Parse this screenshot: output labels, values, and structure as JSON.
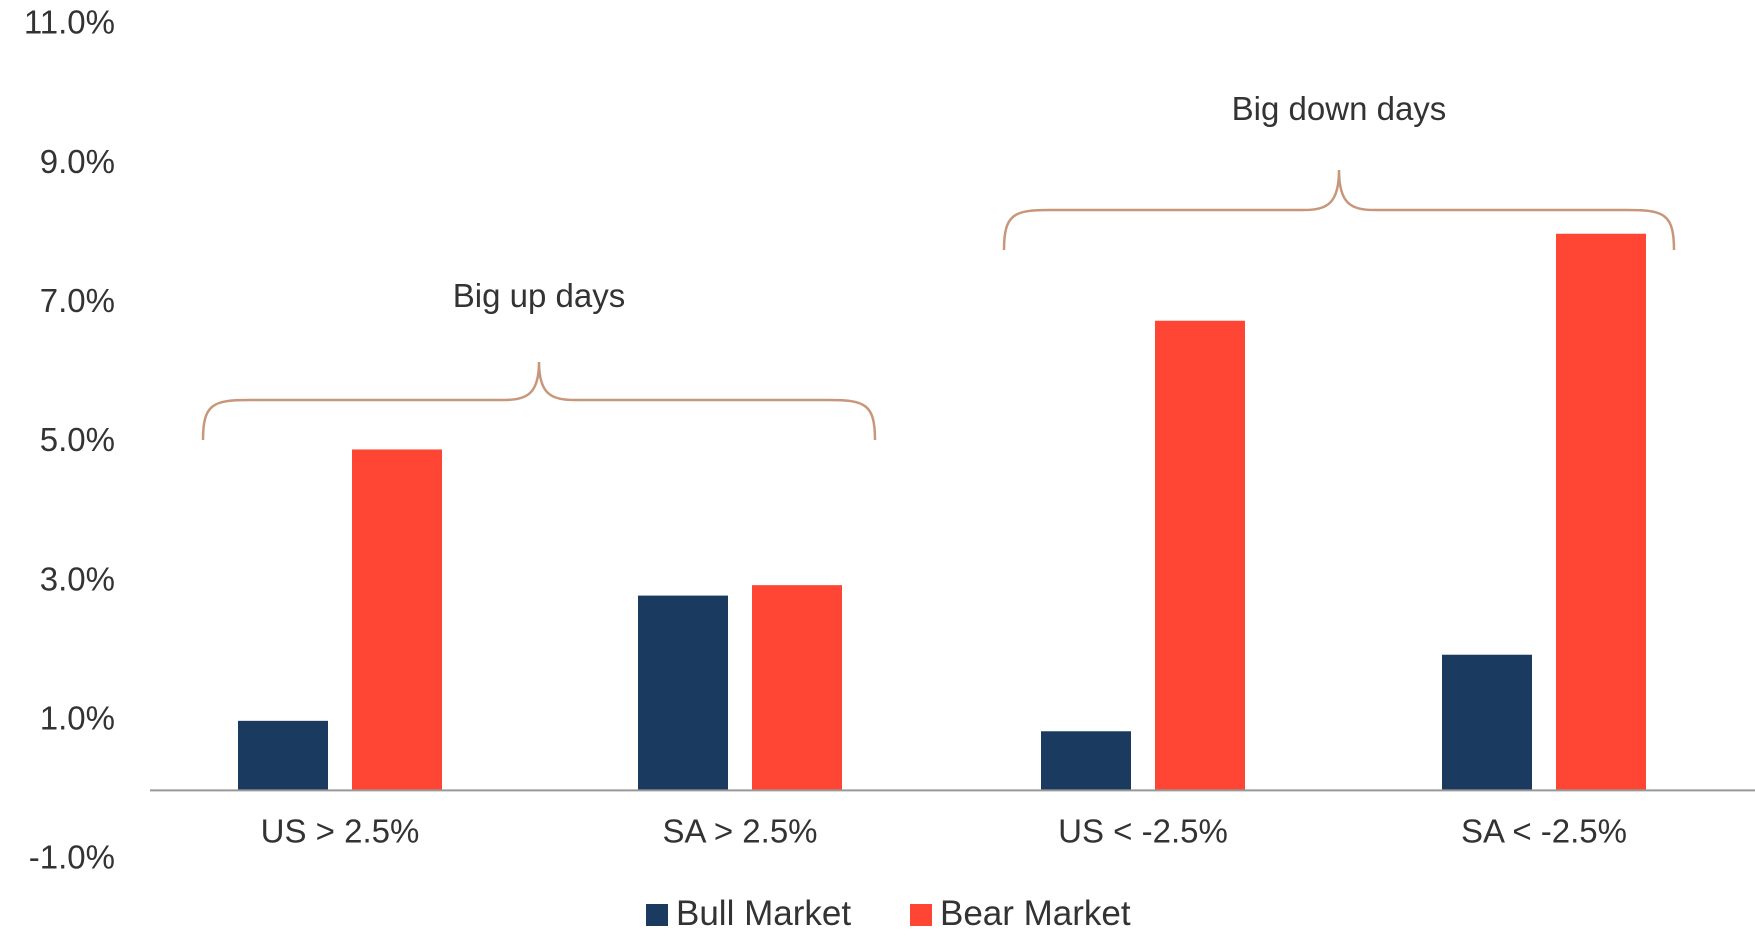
{
  "chart_data": {
    "type": "bar",
    "categories": [
      "US > 2.5%",
      "SA > 2.5%",
      "US < -2.5%",
      "SA < -2.5%"
    ],
    "series": [
      {
        "name": "Bull Market",
        "color": "#1a3a5f",
        "values": [
          1.0,
          2.8,
          0.85,
          1.95
        ]
      },
      {
        "name": "Bear Market",
        "color": "#ff4534",
        "values": [
          4.9,
          2.95,
          6.75,
          8.0
        ]
      }
    ],
    "ylim": [
      -1.0,
      11.0
    ],
    "yticks": [
      "11.0%",
      "9.0%",
      "7.0%",
      "5.0%",
      "3.0%",
      "1.0%",
      "-1.0%"
    ],
    "ytick_values": [
      11,
      9,
      7,
      5,
      3,
      1,
      -1
    ],
    "grid": false,
    "legend_position": "bottom-center",
    "annotations": [
      {
        "text": "Big up days",
        "groups": [
          0,
          1
        ]
      },
      {
        "text": "Big down days",
        "groups": [
          2,
          3
        ]
      }
    ],
    "bracket_color": "#c8967a"
  }
}
